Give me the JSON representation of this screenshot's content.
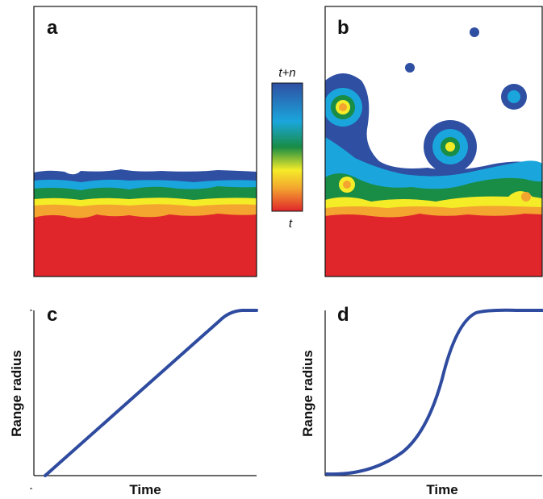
{
  "panels": [
    {
      "label": "a"
    },
    {
      "label": "b"
    },
    {
      "label": "c",
      "y_axis_label": "Range radius",
      "x_axis_label": "Time"
    },
    {
      "label": "d",
      "y_axis_label": "Range radius",
      "x_axis_label": "Time"
    }
  ],
  "colorbar": {
    "top_label": "t+n",
    "bottom_label": "t"
  }
}
